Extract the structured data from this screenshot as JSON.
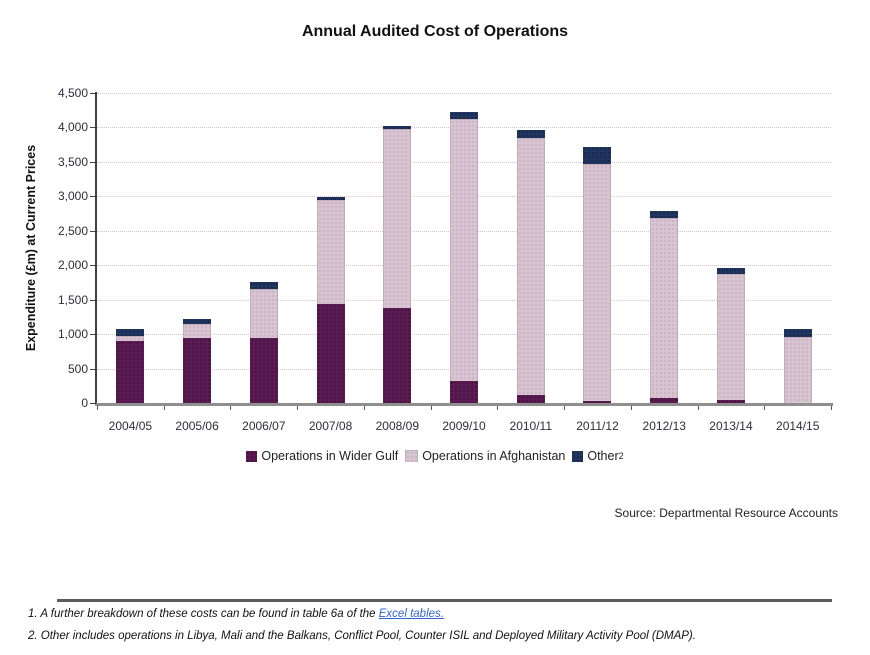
{
  "title": "Annual Audited Cost of Operations",
  "chart_data": {
    "type": "bar",
    "stacked": true,
    "title": "Annual Audited Cost of Operations",
    "xlabel": "",
    "ylabel": "Expenditure (£m) at Current Prices",
    "ylim": [
      0,
      4500
    ],
    "ytick_step": 500,
    "grid": "horizontal-dotted",
    "legend_position": "bottom",
    "categories": [
      "2004/05",
      "2005/06",
      "2006/07",
      "2007/08",
      "2008/09",
      "2009/10",
      "2010/11",
      "2011/12",
      "2012/13",
      "2013/14",
      "2014/15"
    ],
    "series": [
      {
        "name": "Operations in Wider Gulf",
        "color": "#5a1b52",
        "values": [
          900,
          945,
          940,
          1440,
          1375,
          315,
          110,
          25,
          70,
          40,
          0
        ]
      },
      {
        "name": "Operations in Afghanistan",
        "color": "#d8c5d1",
        "values": [
          80,
          200,
          720,
          1500,
          2600,
          3815,
          3740,
          3450,
          2620,
          1840,
          960
        ]
      },
      {
        "name": "Other",
        "sup": "2",
        "color": "#1f3560",
        "values": [
          90,
          75,
          95,
          50,
          40,
          95,
          120,
          240,
          95,
          75,
          115
        ]
      }
    ]
  },
  "source": "Source: Departmental Resource Accounts",
  "footnotes": {
    "note1_prefix": "1. A further breakdown of these costs can be found in table 6a of the ",
    "note1_link": "Excel tables.",
    "note2": "2. Other includes operations in Libya, Mali and the Balkans, Conflict Pool, Counter ISIL and Deployed Military Activity Pool (DMAP)."
  },
  "colors": {
    "wider_gulf": "#5a1b52",
    "afghanistan": "#d8c5d1",
    "other": "#1f3560",
    "gridline": "#d6c6c6",
    "axis": "#404040",
    "link": "#3366cc"
  }
}
